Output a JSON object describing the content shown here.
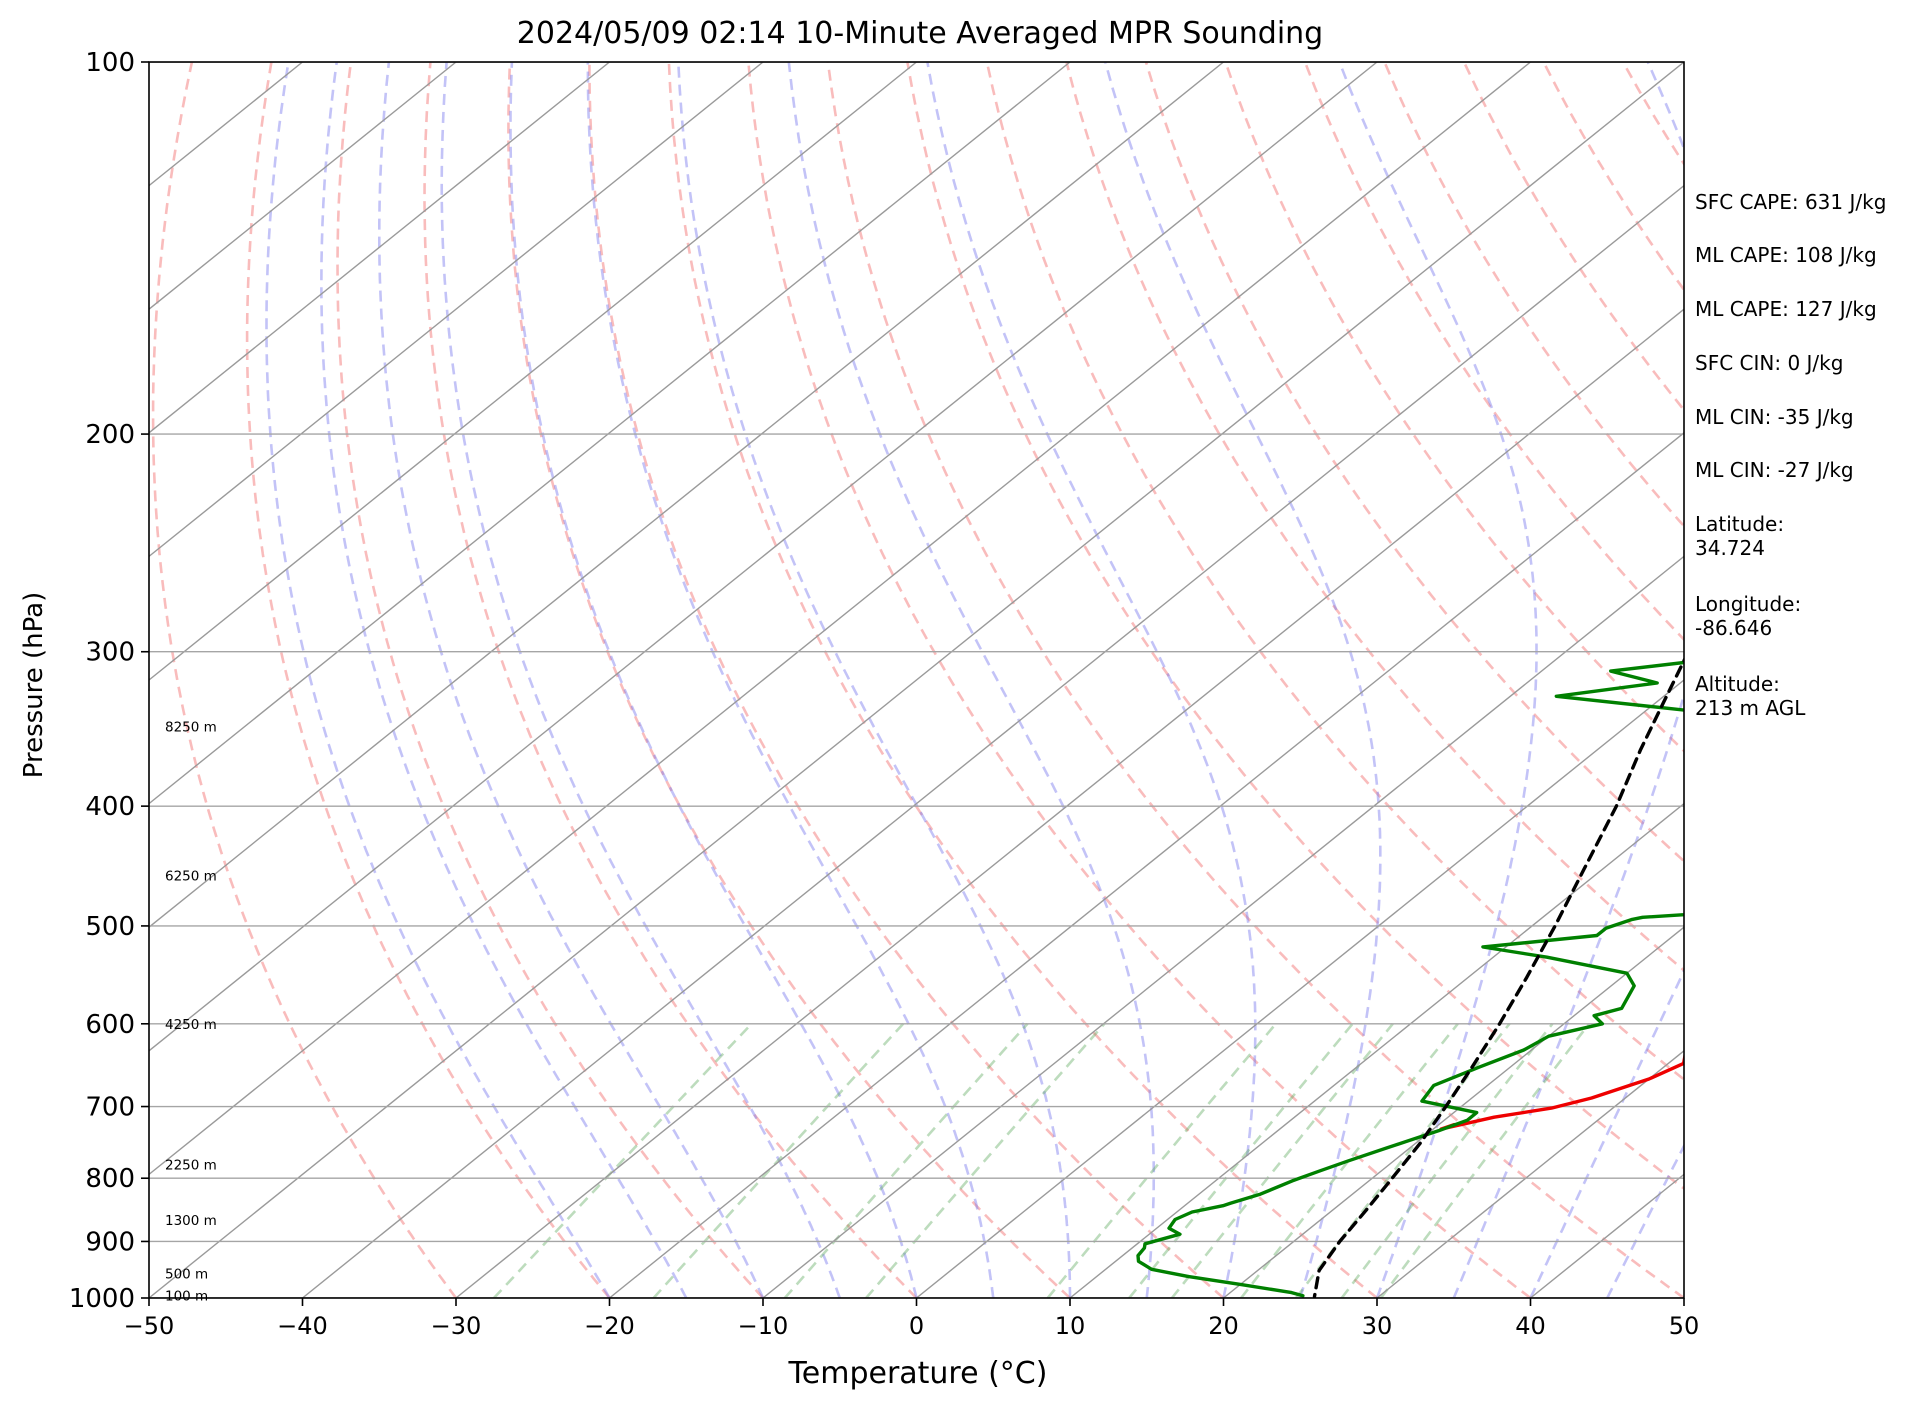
{
  "chart_data": {
    "type": "line",
    "title": "2024/05/09 02:14 10-Minute Averaged MPR Sounding",
    "xlabel": "Temperature (°C)",
    "ylabel": "Pressure (hPa)",
    "xlim": [
      -50,
      50
    ],
    "ylim": [
      1000,
      100
    ],
    "y_scale": "log",
    "grid": true,
    "x_ticks": [
      "−50",
      "−40",
      "−30",
      "−20",
      "−10",
      "0",
      "10",
      "20",
      "30",
      "40",
      "50"
    ],
    "y_ticks": [
      "100",
      "200",
      "300",
      "400",
      "500",
      "600",
      "700",
      "800",
      "900",
      "1000"
    ],
    "height_labels": [
      {
        "text": "8250 m",
        "p": 345
      },
      {
        "text": "6250 m",
        "p": 455
      },
      {
        "text": "4250 m",
        "p": 600
      },
      {
        "text": "2250 m",
        "p": 780
      },
      {
        "text": "1300 m",
        "p": 865
      },
      {
        "text": "500 m",
        "p": 955
      },
      {
        "text": "100 m",
        "p": 995
      }
    ],
    "series": [
      {
        "color": "#ee0000",
        "points": [
          [
            300,
            21.2
          ],
          [
            307,
            20.2
          ],
          [
            313,
            21.2
          ],
          [
            324,
            23.0
          ],
          [
            330,
            23.8
          ],
          [
            339,
            22.8
          ],
          [
            348,
            21.8
          ],
          [
            357,
            22.8
          ],
          [
            365,
            21.2
          ],
          [
            373,
            20.2
          ],
          [
            384,
            20.5
          ],
          [
            393,
            21.0
          ],
          [
            401,
            22.0
          ],
          [
            412,
            23.5
          ],
          [
            424,
            25.5
          ],
          [
            435,
            28.0
          ],
          [
            450,
            29.5
          ],
          [
            465,
            30.3
          ],
          [
            480,
            30.3
          ],
          [
            496,
            29.5
          ],
          [
            510,
            30.0
          ],
          [
            520,
            29.3
          ],
          [
            545,
            31.5
          ],
          [
            565,
            31.5
          ],
          [
            580,
            32.0
          ],
          [
            598,
            33.8
          ],
          [
            614,
            30.5
          ],
          [
            634,
            30.3
          ],
          [
            646,
            31.0
          ],
          [
            665,
            30.0
          ],
          [
            689,
            27.8
          ],
          [
            702,
            26.0
          ],
          [
            714,
            23.0
          ],
          [
            730,
            20.5
          ],
          [
            724,
            21.0
          ]
        ]
      },
      {
        "color": "#008000",
        "points": [
          [
            300,
            3.0
          ],
          [
            305,
            -0.5
          ],
          [
            311,
            -5.5
          ],
          [
            318,
            -1.5
          ],
          [
            326,
            -7.0
          ],
          [
            340,
            8.5
          ],
          [
            344,
            10.5
          ],
          [
            352,
            11.0
          ],
          [
            362,
            19.5
          ],
          [
            373,
            17.0
          ],
          [
            381,
            14.5
          ],
          [
            395,
            10.5
          ],
          [
            404,
            17.5
          ],
          [
            408,
            20.5
          ],
          [
            418,
            22.0
          ],
          [
            428,
            22.0
          ],
          [
            435,
            26.5
          ],
          [
            443,
            24.0
          ],
          [
            452,
            23.8
          ],
          [
            466,
            26.5
          ],
          [
            473,
            26.8
          ],
          [
            484,
            25.0
          ],
          [
            492,
            16.5
          ],
          [
            494,
            16.0
          ],
          [
            502,
            15.0
          ],
          [
            509,
            15.0
          ],
          [
            520,
            8.5
          ],
          [
            530,
            13.5
          ],
          [
            546,
            20.0
          ],
          [
            559,
            21.5
          ],
          [
            583,
            22.5
          ],
          [
            591,
            21.3
          ],
          [
            600,
            22.5
          ],
          [
            614,
            20.0
          ],
          [
            630,
            19.5
          ],
          [
            650,
            18.0
          ],
          [
            673,
            16.5
          ],
          [
            693,
            17.0
          ],
          [
            708,
            21.5
          ],
          [
            718,
            21.5
          ],
          [
            732,
            20.5
          ],
          [
            756,
            18.5
          ],
          [
            775,
            17.0
          ],
          [
            789,
            16.0
          ],
          [
            804,
            15.0
          ],
          [
            824,
            14.0
          ],
          [
            838,
            12.8
          ],
          [
            842,
            12.5
          ],
          [
            852,
            11.0
          ],
          [
            864,
            10.5
          ],
          [
            878,
            10.8
          ],
          [
            888,
            12.0
          ],
          [
            904,
            10.5
          ],
          [
            911,
            10.8
          ],
          [
            924,
            11.0
          ],
          [
            934,
            11.5
          ],
          [
            948,
            13.0
          ],
          [
            961,
            16.0
          ],
          [
            975,
            20.0
          ],
          [
            990,
            24.0
          ],
          [
            996,
            25.0
          ]
        ]
      },
      {
        "color": "#000000",
        "dashed": true,
        "points": [
          [
            300,
            -2.0
          ],
          [
            330,
            0.5
          ],
          [
            360,
            2.8
          ],
          [
            400,
            5.8
          ],
          [
            450,
            8.8
          ],
          [
            500,
            11.5
          ],
          [
            550,
            13.8
          ],
          [
            600,
            15.8
          ],
          [
            650,
            17.5
          ],
          [
            700,
            19.0
          ],
          [
            750,
            20.3
          ],
          [
            800,
            21.3
          ],
          [
            850,
            22.2
          ],
          [
            900,
            23.0
          ],
          [
            950,
            24.0
          ],
          [
            997,
            25.8
          ]
        ]
      }
    ],
    "stats": [
      "SFC CAPE: 631 J/kg",
      "ML CAPE: 108 J/kg",
      "ML CAPE: 127 J/kg",
      "SFC CIN: 0 J/kg",
      "ML CIN: -35 J/kg",
      "ML CIN: -27 J/kg",
      "Latitude:\n34.724",
      "Longitude:\n-86.646",
      "Altitude:\n213 m AGL"
    ]
  }
}
